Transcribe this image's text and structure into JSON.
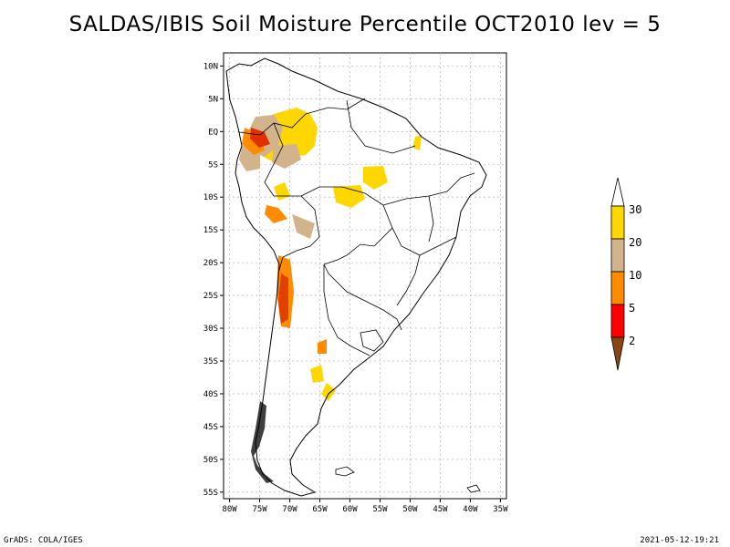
{
  "title": "SALDAS/IBIS Soil Moisture Percentile OCT2010 lev = 5",
  "footer": {
    "left": "GrADS: COLA/IGES",
    "right": "2021-05-12-19:21"
  },
  "map": {
    "lat_labels": [
      "10N",
      "5N",
      "EQ",
      "5S",
      "10S",
      "15S",
      "20S",
      "25S",
      "30S",
      "35S",
      "40S",
      "45S",
      "50S",
      "55S"
    ],
    "lat_values": [
      10,
      5,
      0,
      -5,
      -10,
      -15,
      -20,
      -25,
      -30,
      -35,
      -40,
      -45,
      -50,
      -55
    ],
    "lon_labels": [
      "80W",
      "75W",
      "70W",
      "65W",
      "60W",
      "55W",
      "50W",
      "45W",
      "40W",
      "35W"
    ],
    "lon_values": [
      -80,
      -75,
      -70,
      -65,
      -60,
      -55,
      -50,
      -45,
      -40,
      -35
    ],
    "lon_range": [
      -81,
      -34
    ],
    "lat_range": [
      -56,
      12
    ]
  },
  "colorbar": {
    "labels": [
      "30",
      "20",
      "10",
      "5",
      "2"
    ],
    "colors": {
      "above30": "#ffffff",
      "c20_30": "#ffd700",
      "c10_20": "#d2b48c",
      "c5_10": "#ff8c00",
      "c2_5": "#ff0000",
      "below2": "#8b4513"
    }
  }
}
